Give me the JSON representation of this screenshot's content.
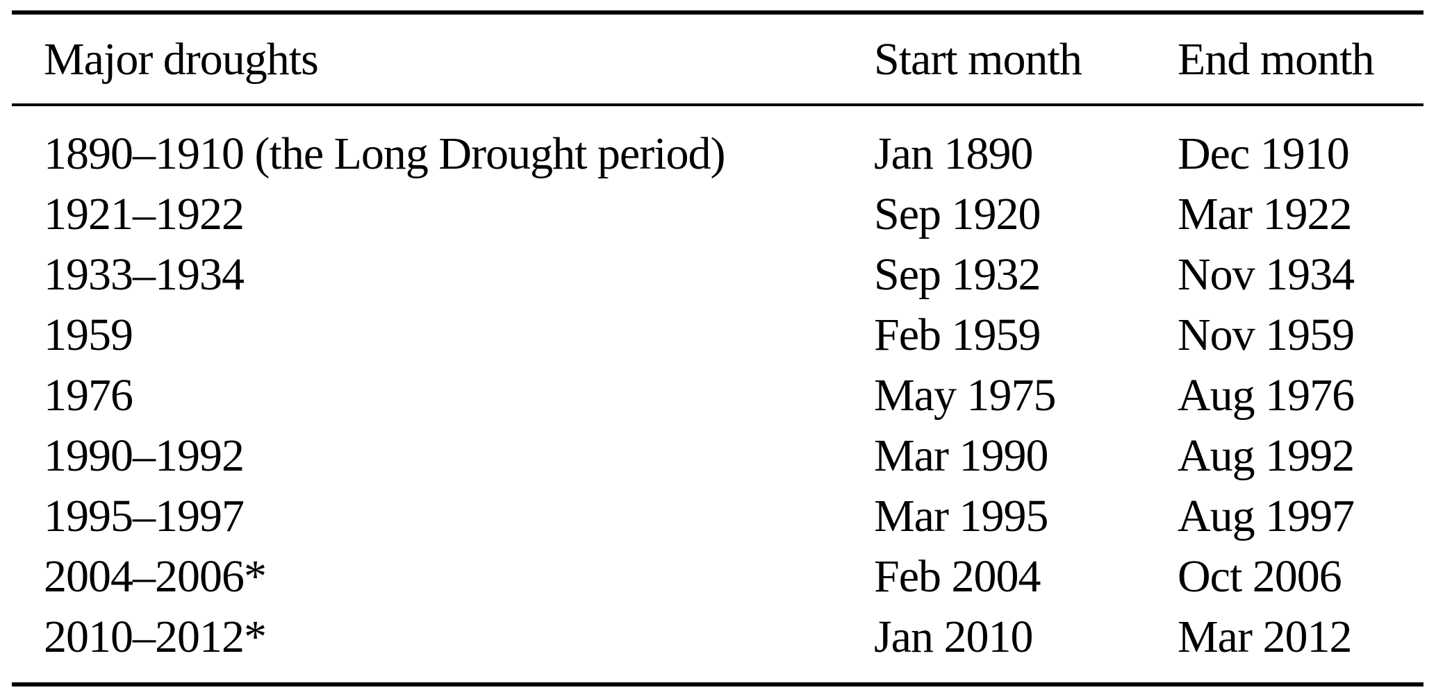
{
  "table": {
    "columns": [
      "Major droughts",
      "Start month",
      "End month"
    ],
    "rows": [
      {
        "drought": "1890–1910 (the Long Drought period)",
        "start": "Jan 1890",
        "end": "Dec 1910"
      },
      {
        "drought": "1921–1922",
        "start": "Sep 1920",
        "end": "Mar 1922"
      },
      {
        "drought": "1933–1934",
        "start": "Sep 1932",
        "end": "Nov 1934"
      },
      {
        "drought": "1959",
        "start": "Feb 1959",
        "end": "Nov 1959"
      },
      {
        "drought": "1976",
        "start": "May 1975",
        "end": "Aug 1976"
      },
      {
        "drought": "1990–1992",
        "start": "Mar 1990",
        "end": "Aug 1992"
      },
      {
        "drought": "1995–1997",
        "start": "Mar 1995",
        "end": "Aug 1997"
      },
      {
        "drought": "2004–2006*",
        "start": "Feb 2004",
        "end": "Oct 2006"
      },
      {
        "drought": "2010–2012*",
        "start": "Jan 2010",
        "end": "Mar 2012"
      }
    ],
    "text_color": "#000000",
    "background_color": "#ffffff"
  }
}
